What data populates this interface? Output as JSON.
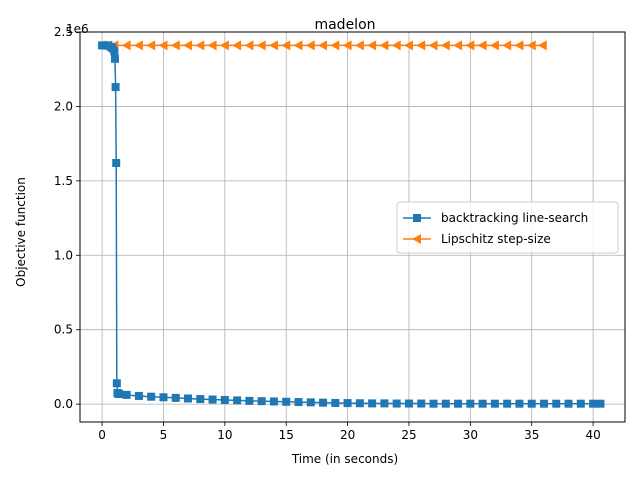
{
  "chart_data": {
    "type": "line",
    "title": "madelon",
    "xlabel": "Time (in seconds)",
    "ylabel": "Objective function",
    "y_offset_label": "1e6",
    "xlim": [
      -1.8,
      42.6
    ],
    "ylim": [
      -0.12,
      2.5
    ],
    "xticks": [
      0,
      5,
      10,
      15,
      20,
      25,
      30,
      35,
      40
    ],
    "xtick_labels": [
      "0",
      "5",
      "10",
      "15",
      "20",
      "25",
      "30",
      "35",
      "40"
    ],
    "yticks": [
      0.0,
      0.5,
      1.0,
      1.5,
      2.0,
      2.5
    ],
    "ytick_labels": [
      "0.0",
      "0.5",
      "1.0",
      "1.5",
      "2.0",
      "2.5"
    ],
    "grid": true,
    "legend_position": "center-right",
    "series": [
      {
        "name": "backtracking line-search",
        "color": "#1f77b4",
        "marker": "square",
        "x": [
          0.0,
          0.25,
          0.5,
          0.7,
          0.85,
          1.0,
          1.05,
          1.1,
          1.15,
          1.2,
          1.25,
          1.3,
          1.35,
          1.4,
          2,
          3,
          4,
          5,
          6,
          7,
          8,
          9,
          10,
          11,
          12,
          13,
          14,
          15,
          16,
          17,
          18,
          19,
          20,
          21,
          22,
          23,
          24,
          25,
          26,
          27,
          28,
          29,
          30,
          31,
          32,
          33,
          34,
          35,
          36,
          37,
          38,
          39,
          40,
          40.6
        ],
        "y": [
          2.41,
          2.41,
          2.41,
          2.4,
          2.39,
          2.37,
          2.32,
          2.13,
          1.62,
          0.14,
          0.075,
          0.072,
          0.07,
          0.068,
          0.062,
          0.055,
          0.05,
          0.046,
          0.042,
          0.038,
          0.034,
          0.031,
          0.028,
          0.025,
          0.022,
          0.02,
          0.018,
          0.016,
          0.014,
          0.012,
          0.01,
          0.008,
          0.007,
          0.006,
          0.005,
          0.005,
          0.004,
          0.004,
          0.004,
          0.003,
          0.003,
          0.003,
          0.003,
          0.003,
          0.003,
          0.003,
          0.003,
          0.003,
          0.003,
          0.003,
          0.003,
          0.003,
          0.003,
          0.003
        ]
      },
      {
        "name": "Lipschitz step-size",
        "color": "#ff7f0e",
        "marker": "triangle-left",
        "x": [
          0.0,
          0.5,
          1.0,
          2,
          3,
          4,
          5,
          6,
          7,
          8,
          9,
          10,
          11,
          12,
          13,
          14,
          15,
          16,
          17,
          18,
          19,
          20,
          21,
          22,
          23,
          24,
          25,
          26,
          27,
          28,
          29,
          30,
          31,
          32,
          33,
          34,
          35,
          35.9
        ],
        "y": [
          2.41,
          2.41,
          2.41,
          2.41,
          2.41,
          2.41,
          2.41,
          2.41,
          2.41,
          2.41,
          2.41,
          2.41,
          2.41,
          2.41,
          2.41,
          2.41,
          2.41,
          2.41,
          2.41,
          2.41,
          2.41,
          2.41,
          2.41,
          2.41,
          2.41,
          2.41,
          2.41,
          2.41,
          2.41,
          2.41,
          2.41,
          2.41,
          2.41,
          2.41,
          2.41,
          2.41,
          2.41,
          2.41
        ]
      }
    ]
  }
}
